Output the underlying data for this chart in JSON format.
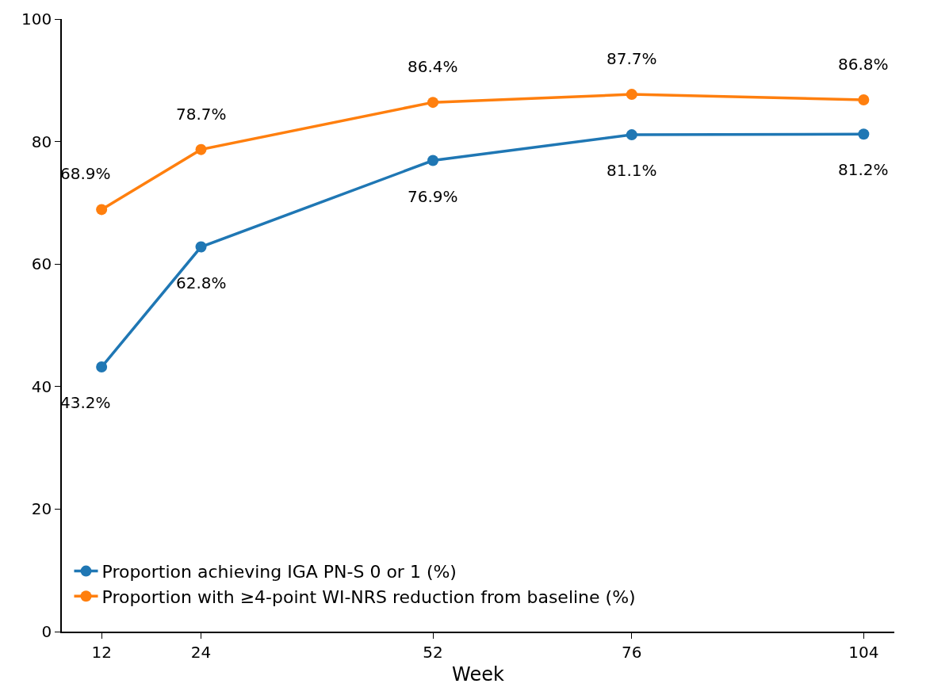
{
  "chart_data": {
    "type": "line",
    "xlabel": "Week",
    "x": [
      12,
      24,
      52,
      76,
      104
    ],
    "series": [
      {
        "name": "Proportion achieving IGA PN-S 0 or 1 (%)",
        "color": "#1f77b4",
        "values": [
          43.2,
          62.8,
          76.9,
          81.1,
          81.2
        ],
        "value_labels": [
          "43.2%",
          "62.8%",
          "76.9%",
          "81.1%",
          "81.2%"
        ]
      },
      {
        "name": "Proportion with ≥4-point WI-NRS reduction from baseline (%)",
        "color": "#ff7f0e",
        "values": [
          68.9,
          78.7,
          86.4,
          87.7,
          86.8
        ],
        "value_labels": [
          "68.9%",
          "78.7%",
          "86.4%",
          "87.7%",
          "86.8%"
        ]
      }
    ],
    "xlim": [
      7.2,
      107.7
    ],
    "xticks": [
      12,
      24,
      52,
      76,
      104
    ],
    "ylim": [
      0,
      100
    ],
    "yticks": [
      0,
      20,
      40,
      60,
      80,
      100
    ],
    "legend": "bottom left",
    "marker": "circle",
    "line_style": "solid"
  }
}
